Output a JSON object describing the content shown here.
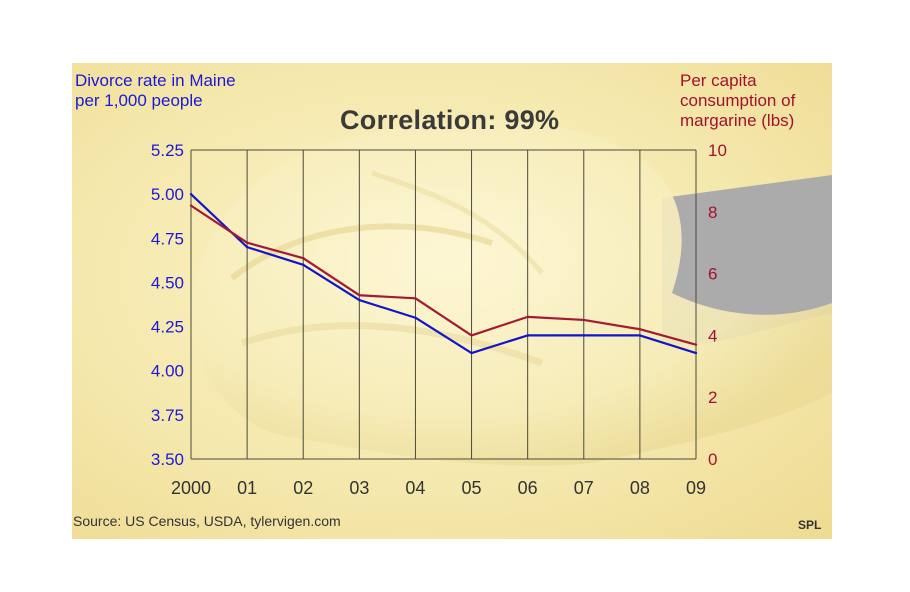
{
  "colors": {
    "divorce_line": "#1515c8",
    "margarine_line": "#a31a32",
    "left_axis_text": "#1a1ad6",
    "right_axis_text": "#a3112e",
    "grid": "#4a4a3a",
    "background": "#f6ebb0"
  },
  "labels": {
    "left_axis_title": "Divorce rate in Maine per 1,000 people",
    "right_axis_title": "Per capita consumption of margarine (lbs)",
    "correlation": "Correlation: 99%",
    "source": "Source: US Census, USDA, tylervigen.com",
    "credit": "SPL"
  },
  "chart_data": {
    "type": "line",
    "title": "Correlation: 99%",
    "categories": [
      "2000",
      "01",
      "02",
      "03",
      "04",
      "05",
      "06",
      "07",
      "08",
      "09"
    ],
    "x": [
      2000,
      2001,
      2002,
      2003,
      2004,
      2005,
      2006,
      2007,
      2008,
      2009
    ],
    "series": [
      {
        "name": "Divorce rate in Maine per 1,000 people",
        "axis": "left",
        "values": [
          5.0,
          4.7,
          4.6,
          4.4,
          4.3,
          4.1,
          4.2,
          4.2,
          4.2,
          4.1
        ]
      },
      {
        "name": "Per capita consumption of margarine (lbs)",
        "axis": "right",
        "values": [
          8.2,
          7.0,
          6.5,
          5.3,
          5.2,
          4.0,
          4.6,
          4.5,
          4.2,
          3.7
        ]
      }
    ],
    "y_left": {
      "label": "Divorce rate in Maine per 1,000 people",
      "lim": [
        3.5,
        5.25
      ],
      "ticks": [
        "5.25",
        "5.00",
        "4.75",
        "4.50",
        "4.25",
        "4.00",
        "3.75",
        "3.50"
      ]
    },
    "y_right": {
      "label": "Per capita consumption of margarine (lbs)",
      "lim": [
        0,
        10
      ],
      "ticks": [
        "10",
        "8",
        "6",
        "4",
        "2",
        "0"
      ]
    },
    "grid": "vertical",
    "xlabel": "",
    "ylabel": ""
  }
}
